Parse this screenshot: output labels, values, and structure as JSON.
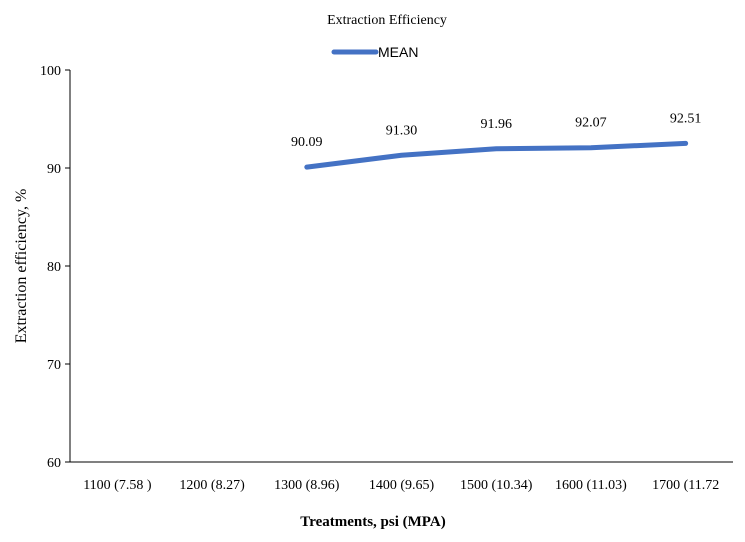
{
  "chart_data": {
    "type": "line",
    "title": "Extraction Efficiency",
    "xlabel": "Treatments, psi (MPA)",
    "ylabel": "Extraction efficiency, %",
    "categories": [
      "1100 (7.58 )",
      "1200 (8.27)",
      "1300 (8.96)",
      "1400 (9.65)",
      "1500 (10.34)",
      "1600 (11.03)",
      "1700 (11.72"
    ],
    "series": [
      {
        "name": "MEAN",
        "values": [
          null,
          null,
          90.09,
          91.3,
          91.96,
          92.07,
          92.51
        ],
        "labels": [
          "",
          "",
          "90.09",
          "91.30",
          "91.96",
          "92.07",
          "92.51"
        ],
        "color": "#4472c4"
      }
    ],
    "ylim": [
      60,
      100
    ],
    "yticks": [
      60,
      70,
      80,
      90,
      100
    ],
    "grid": false,
    "legend_position": "top"
  }
}
